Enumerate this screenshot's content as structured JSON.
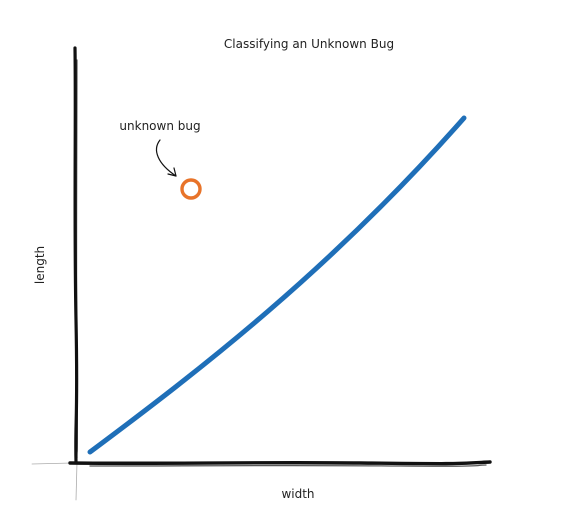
{
  "title": "Classifying an Unknown Bug",
  "xlabel": "width",
  "ylabel": "length",
  "annotation": {
    "label": "unknown bug"
  },
  "colors": {
    "divider_line": "#1f6fb8",
    "unknown_point": "#e8742a",
    "axes": "#111111",
    "text": "#222222"
  }
}
